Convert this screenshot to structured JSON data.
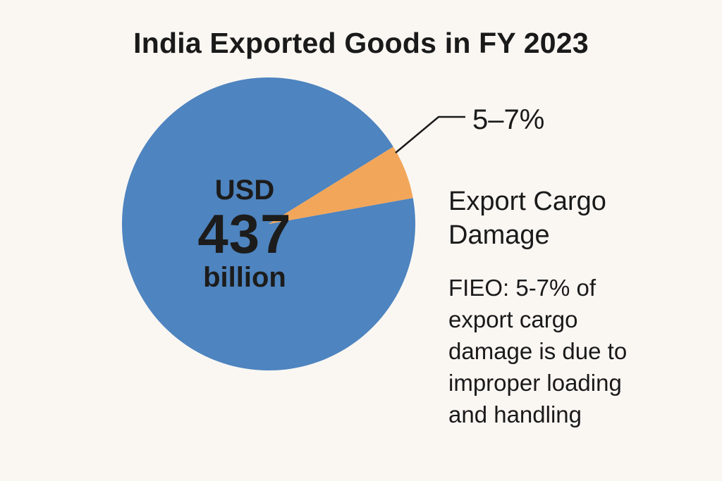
{
  "title": "India Exported Goods in FY 2023",
  "center": {
    "unit": "USD",
    "value": "437",
    "scale": "billion"
  },
  "slice_label": "5–7%",
  "side_heading": "Export Cargo Damage",
  "side_note": "FIEO: 5-7% of export cargo damage is due to improper loading and handling",
  "colors": {
    "main_slice": "#4e84bf",
    "damage_slice": "#f2a65a",
    "background": "#faf7f3",
    "leader_line": "#1a1a1a"
  },
  "chart_data": {
    "type": "pie",
    "title": "India Exported Goods in FY 2023",
    "slices": [
      {
        "label": "",
        "value": 94,
        "color": "#4e84bf"
      },
      {
        "label": "5–7%",
        "value": 6,
        "color": "#f2a65a"
      }
    ]
  }
}
